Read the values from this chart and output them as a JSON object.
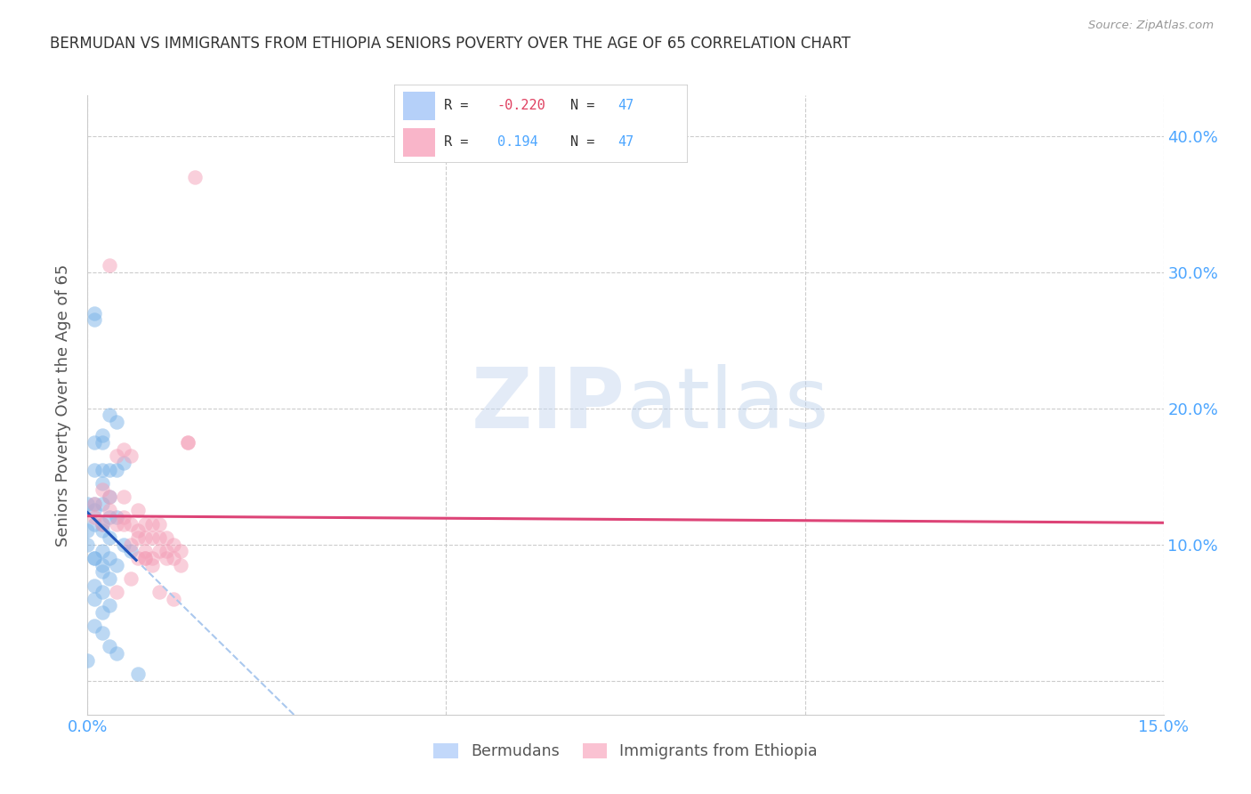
{
  "title": "BERMUDAN VS IMMIGRANTS FROM ETHIOPIA SENIORS POVERTY OVER THE AGE OF 65 CORRELATION CHART",
  "source": "Source: ZipAtlas.com",
  "ylabel": "Seniors Poverty Over the Age of 65",
  "legend_label_bermudans": "Bermudans",
  "legend_label_ethiopia": "Immigrants from Ethiopia",
  "bermudans_color": "#7ab3e8",
  "ethiopia_color": "#f4a0b8",
  "line_blue_color": "#2255bb",
  "line_pink_color": "#dd4477",
  "line_blue_dashed_color": "#aac8ee",
  "background_color": "#ffffff",
  "xlim": [
    0.0,
    0.15
  ],
  "ylim": [
    -0.025,
    0.43
  ],
  "grid_color": "#cccccc",
  "berm_x": [
    0.0,
    0.0,
    0.0,
    0.0,
    0.001,
    0.001,
    0.001,
    0.001,
    0.001,
    0.001,
    0.001,
    0.002,
    0.002,
    0.002,
    0.002,
    0.002,
    0.002,
    0.002,
    0.003,
    0.003,
    0.003,
    0.003,
    0.003,
    0.004,
    0.004,
    0.004,
    0.004,
    0.005,
    0.005,
    0.006,
    0.007,
    0.001,
    0.002,
    0.003,
    0.002,
    0.001,
    0.002,
    0.003,
    0.001,
    0.002,
    0.001,
    0.003,
    0.002,
    0.001,
    0.002,
    0.003,
    0.004
  ],
  "berm_y": [
    0.13,
    0.11,
    0.1,
    0.015,
    0.27,
    0.265,
    0.175,
    0.155,
    0.13,
    0.115,
    0.09,
    0.18,
    0.175,
    0.155,
    0.145,
    0.13,
    0.115,
    0.08,
    0.195,
    0.155,
    0.135,
    0.12,
    0.09,
    0.19,
    0.155,
    0.12,
    0.085,
    0.16,
    0.1,
    0.095,
    0.005,
    0.125,
    0.11,
    0.105,
    0.095,
    0.09,
    0.085,
    0.075,
    0.07,
    0.065,
    0.06,
    0.055,
    0.05,
    0.04,
    0.035,
    0.025,
    0.02
  ],
  "eth_x": [
    0.001,
    0.001,
    0.002,
    0.002,
    0.003,
    0.003,
    0.004,
    0.004,
    0.005,
    0.005,
    0.005,
    0.006,
    0.006,
    0.006,
    0.007,
    0.007,
    0.007,
    0.008,
    0.008,
    0.008,
    0.008,
    0.009,
    0.009,
    0.009,
    0.01,
    0.01,
    0.01,
    0.011,
    0.011,
    0.012,
    0.012,
    0.013,
    0.013,
    0.014,
    0.014,
    0.015,
    0.003,
    0.005,
    0.007,
    0.009,
    0.011,
    0.004,
    0.006,
    0.008,
    0.01,
    0.012
  ],
  "eth_y": [
    0.13,
    0.12,
    0.14,
    0.115,
    0.125,
    0.305,
    0.165,
    0.115,
    0.12,
    0.115,
    0.17,
    0.165,
    0.115,
    0.1,
    0.125,
    0.11,
    0.09,
    0.115,
    0.105,
    0.095,
    0.09,
    0.115,
    0.105,
    0.085,
    0.115,
    0.105,
    0.095,
    0.105,
    0.09,
    0.1,
    0.09,
    0.095,
    0.085,
    0.175,
    0.175,
    0.37,
    0.135,
    0.135,
    0.105,
    0.09,
    0.095,
    0.065,
    0.075,
    0.09,
    0.065,
    0.06
  ]
}
